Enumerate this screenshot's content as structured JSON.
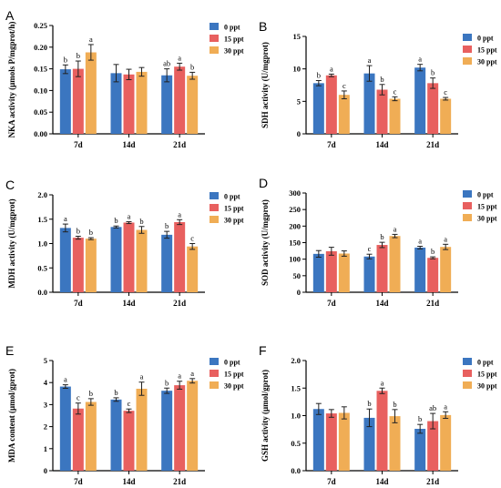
{
  "figure": {
    "colors": {
      "0 ppt": "#3b76c0",
      "15 ppt": "#e8605f",
      "30 ppt": "#f0ad55"
    }
  },
  "chart_data": [
    {
      "panel": "A",
      "type": "bar",
      "categories": [
        "7d",
        "14d",
        "21d"
      ],
      "ylabel": "NKA activity (μmols P/mgprot/h)",
      "ylim": [
        0,
        0.25
      ],
      "yticks": [
        0.0,
        0.05,
        0.1,
        0.15,
        0.2,
        0.25
      ],
      "tick_decimals": 2,
      "series": [
        {
          "name": "0 ppt",
          "values": [
            0.149,
            0.14,
            0.135
          ],
          "errors": [
            0.01,
            0.02,
            0.015
          ],
          "labels": [
            "b",
            "",
            "ab"
          ]
        },
        {
          "name": "15 ppt",
          "values": [
            0.15,
            0.137,
            0.155
          ],
          "errors": [
            0.018,
            0.012,
            0.008
          ],
          "labels": [
            "b",
            "",
            "a"
          ]
        },
        {
          "name": "30 ppt",
          "values": [
            0.188,
            0.143,
            0.134
          ],
          "errors": [
            0.018,
            0.01,
            0.008
          ],
          "labels": [
            "a",
            "",
            "b"
          ]
        }
      ]
    },
    {
      "panel": "B",
      "type": "bar",
      "categories": [
        "7d",
        "14d",
        "21d"
      ],
      "ylabel": "SDH activity (U/mgprot)",
      "ylim": [
        0,
        15
      ],
      "yticks": [
        0,
        5,
        10,
        15
      ],
      "tick_decimals": 0,
      "series": [
        {
          "name": "0 ppt",
          "values": [
            7.8,
            9.3,
            10.2
          ],
          "errors": [
            0.4,
            1.2,
            0.5
          ],
          "labels": [
            "b",
            "a",
            "a"
          ]
        },
        {
          "name": "15 ppt",
          "values": [
            9.0,
            6.8,
            7.8
          ],
          "errors": [
            0.2,
            0.8,
            0.8
          ],
          "labels": [
            "a",
            "b",
            "b"
          ]
        },
        {
          "name": "30 ppt",
          "values": [
            6.0,
            5.4,
            5.4
          ],
          "errors": [
            0.6,
            0.3,
            0.2
          ],
          "labels": [
            "c",
            "c",
            "c"
          ]
        }
      ]
    },
    {
      "panel": "C",
      "type": "bar",
      "categories": [
        "7d",
        "14d",
        "21d"
      ],
      "ylabel": "MDH activity (U/mgprot)",
      "ylim": [
        0,
        2.0
      ],
      "yticks": [
        0.0,
        0.5,
        1.0,
        1.5,
        2.0
      ],
      "tick_decimals": 1,
      "series": [
        {
          "name": "0 ppt",
          "values": [
            1.32,
            1.34,
            1.18
          ],
          "errors": [
            0.08,
            0.02,
            0.07
          ],
          "labels": [
            "a",
            "b",
            "b"
          ]
        },
        {
          "name": "15 ppt",
          "values": [
            1.12,
            1.43,
            1.44
          ],
          "errors": [
            0.03,
            0.02,
            0.05
          ],
          "labels": [
            "b",
            "a",
            "a"
          ]
        },
        {
          "name": "30 ppt",
          "values": [
            1.1,
            1.28,
            0.94
          ],
          "errors": [
            0.02,
            0.07,
            0.06
          ],
          "labels": [
            "b",
            "b",
            "c"
          ]
        }
      ]
    },
    {
      "panel": "D",
      "type": "bar",
      "categories": [
        "7d",
        "14d",
        "21d"
      ],
      "ylabel": "SOD activity (U/mgprot)",
      "ylim": [
        0,
        300
      ],
      "yticks": [
        0,
        50,
        100,
        150,
        200,
        250,
        300
      ],
      "tick_decimals": 0,
      "series": [
        {
          "name": "0 ppt",
          "values": [
            116,
            108,
            135
          ],
          "errors": [
            10,
            7,
            4
          ],
          "labels": [
            "",
            "c",
            "a"
          ]
        },
        {
          "name": "15 ppt",
          "values": [
            124,
            143,
            104
          ],
          "errors": [
            12,
            8,
            3
          ],
          "labels": [
            "",
            "b",
            "b"
          ]
        },
        {
          "name": "30 ppt",
          "values": [
            117,
            170,
            137
          ],
          "errors": [
            8,
            5,
            8
          ],
          "labels": [
            "",
            "a",
            "a"
          ]
        }
      ]
    },
    {
      "panel": "E",
      "type": "bar",
      "categories": [
        "7d",
        "14d",
        "21d"
      ],
      "ylabel": "MDA content (μmol/gprot)",
      "ylim": [
        0,
        5
      ],
      "yticks": [
        0,
        1,
        2,
        3,
        4,
        5
      ],
      "tick_decimals": 0,
      "series": [
        {
          "name": "0 ppt",
          "values": [
            3.82,
            3.23,
            3.63
          ],
          "errors": [
            0.08,
            0.08,
            0.12
          ],
          "labels": [
            "a",
            "b",
            "b"
          ]
        },
        {
          "name": "15 ppt",
          "values": [
            2.82,
            2.72,
            3.88
          ],
          "errors": [
            0.25,
            0.08,
            0.18
          ],
          "labels": [
            "c",
            "c",
            "a"
          ]
        },
        {
          "name": "30 ppt",
          "values": [
            3.12,
            3.72,
            4.08
          ],
          "errors": [
            0.15,
            0.3,
            0.1
          ],
          "labels": [
            "b",
            "a",
            "a"
          ]
        }
      ]
    },
    {
      "panel": "F",
      "type": "bar",
      "categories": [
        "7d",
        "14d",
        "21d"
      ],
      "ylabel": "GSH activity (μmol/gprot)",
      "ylim": [
        0,
        2.0
      ],
      "yticks": [
        0.0,
        0.5,
        1.0,
        1.5,
        2.0
      ],
      "tick_decimals": 1,
      "series": [
        {
          "name": "0 ppt",
          "values": [
            1.12,
            0.96,
            0.76
          ],
          "errors": [
            0.1,
            0.16,
            0.08
          ],
          "labels": [
            "",
            "b",
            "b"
          ]
        },
        {
          "name": "15 ppt",
          "values": [
            1.04,
            1.45,
            0.9
          ],
          "errors": [
            0.07,
            0.05,
            0.14
          ],
          "labels": [
            "",
            "a",
            "ab"
          ]
        },
        {
          "name": "30 ppt",
          "values": [
            1.05,
            0.99,
            1.01
          ],
          "errors": [
            0.11,
            0.12,
            0.06
          ],
          "labels": [
            "",
            "b",
            "a"
          ]
        }
      ]
    }
  ]
}
